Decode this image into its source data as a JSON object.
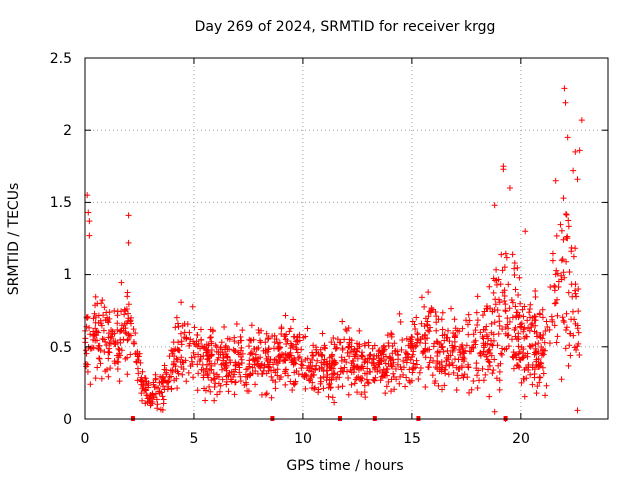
{
  "chart_data": {
    "type": "scatter",
    "title": "Day 269 of 2024, SRMTID for receiver krgg",
    "xlabel": "GPS time / hours",
    "ylabel": "SRMTID / TECUs",
    "xlim": [
      0,
      24
    ],
    "ylim": [
      0,
      2.5
    ],
    "xticks": [
      0,
      5,
      10,
      15,
      20
    ],
    "xtick_labels": [
      "0",
      "5",
      "10",
      "15",
      "20"
    ],
    "yticks": [
      0,
      0.5,
      1,
      1.5,
      2,
      2.5
    ],
    "ytick_labels": [
      "0",
      "0.5",
      "1",
      "1.5",
      "2",
      "2.5"
    ],
    "grid": true,
    "marker": "+",
    "color": "#ff0000",
    "series": [
      {
        "name": "SRMTID",
        "profile_note": "approximate envelope of the dense point cloud (hour, median, spread)",
        "profile": [
          [
            0.0,
            0.5,
            0.25
          ],
          [
            0.5,
            0.6,
            0.25
          ],
          [
            1.0,
            0.55,
            0.25
          ],
          [
            1.5,
            0.6,
            0.25
          ],
          [
            2.0,
            0.65,
            0.3
          ],
          [
            2.3,
            0.5,
            0.2
          ],
          [
            2.7,
            0.2,
            0.1
          ],
          [
            3.5,
            0.2,
            0.12
          ],
          [
            4.0,
            0.4,
            0.2
          ],
          [
            4.7,
            0.55,
            0.25
          ],
          [
            5.5,
            0.4,
            0.22
          ],
          [
            6.5,
            0.4,
            0.2
          ],
          [
            7.5,
            0.4,
            0.2
          ],
          [
            8.5,
            0.4,
            0.2
          ],
          [
            9.0,
            0.45,
            0.2
          ],
          [
            10.0,
            0.4,
            0.2
          ],
          [
            11.0,
            0.35,
            0.18
          ],
          [
            12.0,
            0.4,
            0.2
          ],
          [
            13.0,
            0.35,
            0.18
          ],
          [
            14.0,
            0.4,
            0.2
          ],
          [
            15.0,
            0.45,
            0.25
          ],
          [
            15.5,
            0.55,
            0.28
          ],
          [
            16.5,
            0.45,
            0.25
          ],
          [
            17.5,
            0.45,
            0.25
          ],
          [
            18.5,
            0.5,
            0.3
          ],
          [
            19.0,
            0.7,
            0.4
          ],
          [
            19.5,
            0.75,
            0.45
          ],
          [
            20.0,
            0.55,
            0.35
          ],
          [
            21.0,
            0.45,
            0.3
          ],
          [
            21.5,
            0.75,
            0.4
          ],
          [
            22.0,
            0.95,
            0.55
          ],
          [
            22.5,
            0.75,
            0.45
          ],
          [
            22.7,
            0.45,
            0.2
          ]
        ],
        "highlights": [
          [
            0.1,
            1.55
          ],
          [
            0.15,
            1.43
          ],
          [
            0.2,
            1.37
          ],
          [
            0.2,
            1.27
          ],
          [
            2.0,
            1.41
          ],
          [
            2.0,
            1.22
          ],
          [
            19.2,
            1.75
          ],
          [
            19.2,
            1.73
          ],
          [
            19.5,
            1.6
          ],
          [
            18.8,
            1.48
          ],
          [
            21.6,
            1.65
          ],
          [
            22.0,
            2.29
          ],
          [
            22.05,
            2.19
          ],
          [
            22.15,
            1.95
          ],
          [
            22.5,
            1.85
          ],
          [
            22.6,
            1.66
          ],
          [
            22.8,
            2.07
          ],
          [
            22.7,
            1.86
          ],
          [
            22.4,
            1.72
          ],
          [
            18.8,
            0.05
          ],
          [
            22.6,
            0.06
          ],
          [
            19.3,
            0.0
          ],
          [
            20.2,
            1.3
          ]
        ],
        "zero_points": [
          2.2,
          8.6,
          11.7,
          13.3,
          15.3,
          19.3
        ]
      }
    ]
  }
}
